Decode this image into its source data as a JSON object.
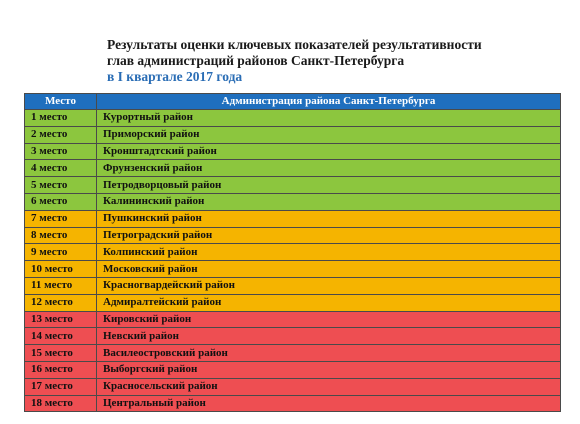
{
  "title": {
    "line1": "Результаты оценки ключевых показателей результативности",
    "line2": "глав администраций районов Санкт-Петербурга",
    "line3": "в I квартале 2017 года"
  },
  "table": {
    "headers": {
      "place": "Место",
      "district": "Администрация района Санкт-Петербурга"
    },
    "colors": {
      "header": "#1f6fbe",
      "green": "#8cc63e",
      "yellow": "#f5b400",
      "red": "#ee4e52"
    },
    "rows": [
      {
        "place": "1 место",
        "district": "Курортный район",
        "group": "green"
      },
      {
        "place": "2 место",
        "district": "Приморский район",
        "group": "green"
      },
      {
        "place": "3 место",
        "district": "Кронштадтский район",
        "group": "green"
      },
      {
        "place": "4 место",
        "district": "Фрунзенский район",
        "group": "green"
      },
      {
        "place": "5 место",
        "district": "Петродворцовый район",
        "group": "green"
      },
      {
        "place": "6 место",
        "district": "Калининский район",
        "group": "green"
      },
      {
        "place": "7 место",
        "district": "Пушкинский район",
        "group": "yellow"
      },
      {
        "place": "8 место",
        "district": "Петроградский район",
        "group": "yellow"
      },
      {
        "place": "9 место",
        "district": "Колпинский район",
        "group": "yellow"
      },
      {
        "place": "10 место",
        "district": "Московский район",
        "group": "yellow"
      },
      {
        "place": "11 место",
        "district": "Красногвардейский район",
        "group": "yellow"
      },
      {
        "place": "12 место",
        "district": "Адмиралтейский район",
        "group": "yellow"
      },
      {
        "place": "13 место",
        "district": "Кировский район",
        "group": "red"
      },
      {
        "place": "14 место",
        "district": "Невский район",
        "group": "red"
      },
      {
        "place": "15 место",
        "district": "Василеостровский район",
        "group": "red"
      },
      {
        "place": "16 место",
        "district": "Выборгский район",
        "group": "red"
      },
      {
        "place": "17 место",
        "district": "Красносельский район",
        "group": "red"
      },
      {
        "place": "18 место",
        "district": "Центральный район",
        "group": "red"
      }
    ]
  }
}
